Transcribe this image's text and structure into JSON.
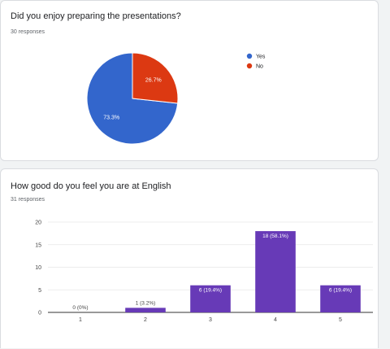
{
  "question1": {
    "title": "Did you enjoy preparing the presentations?",
    "responses": "30 responses"
  },
  "question2": {
    "title": "How good do you feel you are at English",
    "responses": "31 responses"
  },
  "chart_data": [
    {
      "type": "pie",
      "title": "Did you enjoy preparing the presentations?",
      "labels": [
        "Yes",
        "No"
      ],
      "values": [
        73.3,
        26.7
      ],
      "value_labels": [
        "73.3%",
        "26.7%"
      ],
      "colors": [
        "#3366cc",
        "#dc3912"
      ],
      "legend": "right"
    },
    {
      "type": "bar",
      "title": "How good do you feel you are at English",
      "categories": [
        "1",
        "2",
        "3",
        "4",
        "5"
      ],
      "values": [
        0,
        1,
        6,
        18,
        6
      ],
      "value_labels": [
        "0 (0%)",
        "1 (3.2%)",
        "6 (19.4%)",
        "18 (58.1%)",
        "6 (19.4%)"
      ],
      "ylim": [
        0,
        20
      ],
      "yticks": [
        "0",
        "5",
        "10",
        "15",
        "20"
      ],
      "grid": true,
      "color": "#673ab7"
    }
  ]
}
